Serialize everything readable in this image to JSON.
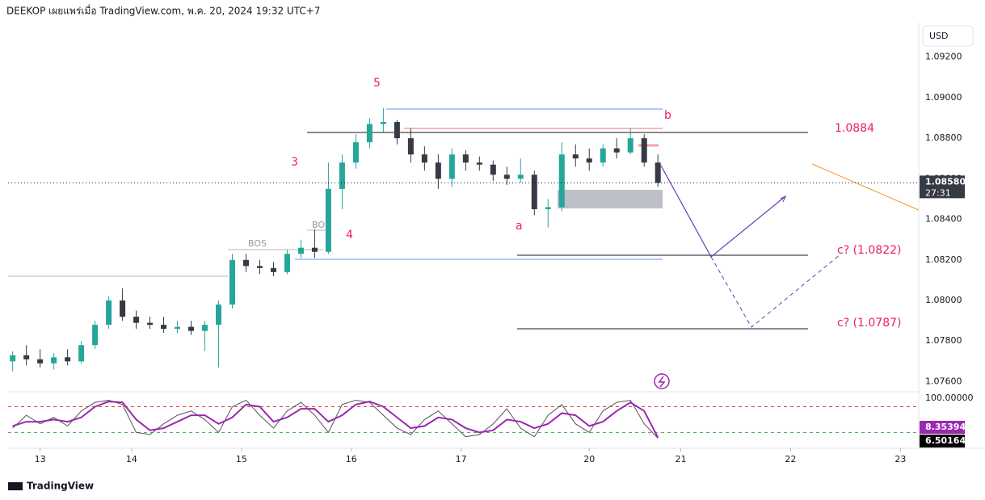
{
  "header": "DEEKOP เผยแพร่เมื่อ TradingView.com, พ.ค. 20, 2024 19:32 UTC+7",
  "currency": "USD",
  "annotations": {
    "wave_5": "5",
    "wave_3": "3",
    "wave_4": "4",
    "wave_a": "a",
    "wave_b": "b",
    "level": "1.0884",
    "target_1": "c? (1.0822)",
    "target_2": "c? (1.0787)",
    "bos_1": "BOS",
    "bos_2": "BOS"
  },
  "footer": "TradingView",
  "chart_data": [
    {
      "type": "candlestick",
      "up_color": "#26a69a",
      "down_color": "#363a45",
      "x": [
        1,
        4,
        7,
        10,
        13,
        16,
        19,
        22,
        25,
        28,
        31,
        34,
        37,
        40,
        43,
        46,
        49,
        52,
        55,
        58,
        61,
        64,
        67,
        70,
        73,
        76,
        79,
        82,
        85,
        88,
        91,
        94,
        97,
        100,
        103,
        106,
        109,
        112,
        115,
        118,
        121,
        124,
        127,
        130,
        133,
        136,
        139,
        142
      ],
      "open": [
        1.077,
        1.0773,
        1.0771,
        1.0769,
        1.0772,
        1.077,
        1.0778,
        1.0788,
        1.08,
        1.0792,
        1.0789,
        1.0788,
        1.0786,
        1.0787,
        1.0785,
        1.0788,
        1.0798,
        1.082,
        1.0817,
        1.0816,
        1.0814,
        1.0823,
        1.0826,
        1.0824,
        1.0855,
        1.0868,
        1.0878,
        1.0887,
        1.0888,
        1.088,
        1.0872,
        1.0868,
        1.086,
        1.0872,
        1.0868,
        1.0867,
        1.0862,
        1.086,
        1.0862,
        1.0845,
        1.0846,
        1.0872,
        1.087,
        1.0868,
        1.0875,
        1.0873,
        1.088,
        1.0868
      ],
      "high": [
        1.0775,
        1.0778,
        1.0776,
        1.0774,
        1.0776,
        1.078,
        1.079,
        1.0802,
        1.0806,
        1.0795,
        1.0792,
        1.0792,
        1.079,
        1.079,
        1.079,
        1.08,
        1.0823,
        1.0823,
        1.082,
        1.0819,
        1.0825,
        1.083,
        1.0835,
        1.0868,
        1.0872,
        1.0882,
        1.089,
        1.0895,
        1.0889,
        1.0885,
        1.0876,
        1.0872,
        1.0875,
        1.0874,
        1.0871,
        1.0869,
        1.0866,
        1.087,
        1.0864,
        1.085,
        1.0878,
        1.0877,
        1.0875,
        1.0877,
        1.088,
        1.0885,
        1.0882,
        1.0872
      ],
      "low": [
        1.0765,
        1.0768,
        1.0767,
        1.0766,
        1.0768,
        1.0769,
        1.0776,
        1.0786,
        1.079,
        1.0786,
        1.0786,
        1.0784,
        1.0784,
        1.0783,
        1.0775,
        1.0767,
        1.0796,
        1.0814,
        1.0813,
        1.0812,
        1.0813,
        1.0821,
        1.0821,
        1.0823,
        1.0845,
        1.0865,
        1.0875,
        1.0883,
        1.0877,
        1.0868,
        1.0864,
        1.0855,
        1.0856,
        1.0864,
        1.0864,
        1.0859,
        1.0857,
        1.0858,
        1.0842,
        1.0836,
        1.0844,
        1.0866,
        1.0864,
        1.0866,
        1.087,
        1.0872,
        1.0866,
        1.0856
      ],
      "close": [
        1.0773,
        1.0771,
        1.0769,
        1.0772,
        1.077,
        1.0778,
        1.0788,
        1.08,
        1.0792,
        1.0789,
        1.0788,
        1.0786,
        1.0787,
        1.0785,
        1.0788,
        1.0798,
        1.082,
        1.0817,
        1.0816,
        1.0814,
        1.0823,
        1.0826,
        1.0824,
        1.0855,
        1.0868,
        1.0878,
        1.0887,
        1.0888,
        1.088,
        1.0872,
        1.0868,
        1.086,
        1.0872,
        1.0868,
        1.0867,
        1.0862,
        1.086,
        1.0862,
        1.0845,
        1.0846,
        1.0872,
        1.087,
        1.0868,
        1.0875,
        1.0873,
        1.088,
        1.0868,
        1.0858
      ],
      "last_price": {
        "value": 1.0858,
        "label": "1.08580"
      },
      "countdown": "27:31",
      "xlim": [
        0,
        199
      ],
      "xticks": [
        {
          "value": 7,
          "label": "13"
        },
        {
          "value": 27,
          "label": "14"
        },
        {
          "value": 51,
          "label": "15"
        },
        {
          "value": 75,
          "label": "16"
        },
        {
          "value": 99,
          "label": "17"
        },
        {
          "value": 127,
          "label": "20"
        },
        {
          "value": 147,
          "label": "21"
        },
        {
          "value": 171,
          "label": "22"
        },
        {
          "value": 195,
          "label": "23"
        }
      ],
      "ylim": [
        1.0755,
        1.0937
      ],
      "yticks": [
        {
          "value": 1.092,
          "label": "1.09200"
        },
        {
          "value": 1.09,
          "label": "1.09000"
        },
        {
          "value": 1.088,
          "label": "1.08800"
        },
        {
          "value": 1.086,
          "label": "1.08600"
        },
        {
          "value": 1.084,
          "label": "1.08400"
        },
        {
          "value": 1.082,
          "label": "1.08200"
        },
        {
          "value": 1.08,
          "label": "1.08000"
        },
        {
          "value": 1.078,
          "label": "1.07800"
        },
        {
          "value": 1.076,
          "label": "1.07600"
        }
      ],
      "grid": false
    },
    {
      "type": "line",
      "x": [
        1,
        4,
        7,
        10,
        13,
        16,
        19,
        22,
        25,
        28,
        31,
        34,
        37,
        40,
        43,
        46,
        49,
        52,
        55,
        58,
        61,
        64,
        67,
        70,
        73,
        76,
        79,
        82,
        85,
        88,
        91,
        94,
        97,
        100,
        103,
        106,
        109,
        112,
        115,
        118,
        121,
        124,
        127,
        130,
        133,
        136,
        139,
        142
      ],
      "series": [
        {
          "name": "%K",
          "color": "#555555",
          "values": [
            30,
            60,
            40,
            55,
            35,
            70,
            90,
            95,
            85,
            20,
            15,
            40,
            60,
            70,
            50,
            20,
            80,
            95,
            60,
            30,
            70,
            90,
            60,
            20,
            85,
            95,
            90,
            60,
            30,
            15,
            50,
            70,
            40,
            10,
            15,
            40,
            75,
            30,
            10,
            60,
            85,
            40,
            20,
            70,
            90,
            95,
            40,
            6.50164
          ]
        },
        {
          "name": "%D",
          "color": "#9c27b0",
          "values": [
            35,
            45,
            45,
            50,
            45,
            55,
            80,
            92,
            90,
            50,
            25,
            30,
            45,
            60,
            60,
            40,
            55,
            85,
            80,
            45,
            55,
            75,
            75,
            45,
            60,
            85,
            92,
            80,
            55,
            30,
            35,
            55,
            50,
            30,
            20,
            25,
            50,
            45,
            30,
            40,
            65,
            60,
            35,
            45,
            70,
            90,
            70,
            8.35394
          ]
        }
      ],
      "levels": [
        {
          "value": 80,
          "color": "#e53935"
        },
        {
          "value": 20,
          "color": "#43a047"
        }
      ],
      "ylim": [
        -17,
        111
      ],
      "yticks": [
        {
          "value": 100,
          "label": "100.00000"
        }
      ]
    }
  ]
}
